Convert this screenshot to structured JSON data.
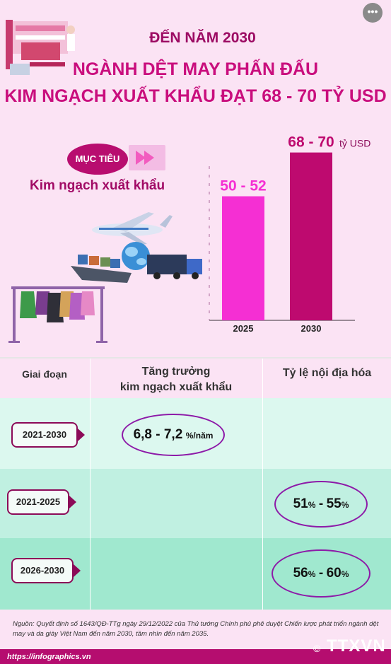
{
  "header": {
    "line1": "ĐẾN NĂM 2030",
    "line2": "NGÀNH DỆT MAY PHẤN ĐẤU",
    "line3": "KIM NGẠCH XUẤT KHẨU ĐẠT 68 - 70 TỶ USD"
  },
  "target": {
    "pill": "MỤC TIÊU",
    "label": "Kim ngạch xuất khẩu"
  },
  "chart_data": {
    "type": "bar",
    "categories": [
      "2025",
      "2030"
    ],
    "values": [
      51,
      69
    ],
    "value_labels": [
      "50 - 52",
      "68 - 70"
    ],
    "unit": "tỷ USD",
    "colors": [
      "#f52fd3",
      "#be0a6f"
    ],
    "ylim": [
      0,
      75
    ]
  },
  "table": {
    "headers": [
      "Giai đoạn",
      "Tăng trưởng",
      "kim ngạch xuất khẩu",
      "Tỷ lệ nội địa hóa"
    ],
    "rows": [
      {
        "period": "2021-2030",
        "growth_main": "6,8 - 7,2",
        "growth_unit": "%/năm"
      },
      {
        "period": "2021-2025",
        "loc_a": "51",
        "loc_b": "55",
        "pct": "%"
      },
      {
        "period": "2026-2030",
        "loc_a": "56",
        "loc_b": "60",
        "pct": "%"
      }
    ]
  },
  "source": "Nguồn: Quyết định số 1643/QĐ-TTg ngày 29/12/2022 của Thủ tướng Chính phủ phê duyệt Chiến lược phát triển ngành dệt may và da giày Việt Nam đến năm 2030, tầm nhìn đến năm 2035.",
  "footer": {
    "url": "https://infographics.vn",
    "logo": "TTXVN",
    "copyright": "©",
    "more": "•••"
  }
}
